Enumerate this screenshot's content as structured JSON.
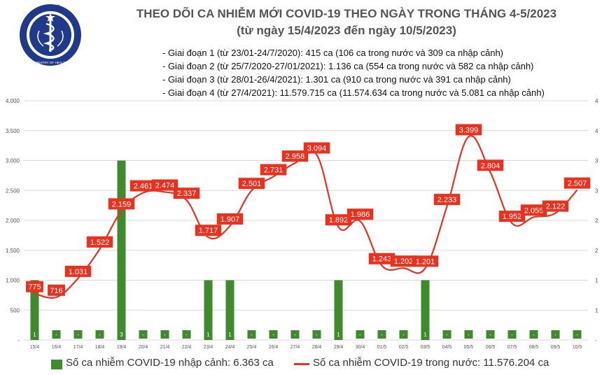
{
  "header": {
    "logo_text_top": "BỘ Y TẾ",
    "logo_text_bottom": "MINISTRY OF HEALTH",
    "title_line1": "THEO DÕI CA NHIỄM MỚI COVID-19 THEO NGÀY TRONG THÁNG 4-5/2023",
    "title_line2": "(từ ngày 15/4/2023 đến ngày 10/5/2023)"
  },
  "stages": [
    "- Giai đoạn 1 (từ 23/01-24/7/2020): 415 ca (106 ca trong nước và 309 ca nhập cảnh)",
    "- Giai đoạn 2 (từ 25/7/2020-27/01/2021): 1.136 ca (554 ca trong nước và 582 ca nhập cảnh)",
    "- Giai đoạn 3 (từ 28/01-26/4/2021): 1.301 ca (910 ca trong nước và 391 ca nhập cảnh)",
    "- Giai đoạn 4 (từ 27/4/2021): 11.579.715 ca (11.574.634 ca trong nước và 5.081 ca nhập cảnh)"
  ],
  "legend": {
    "bar_label": "Số ca nhiễm COVID-19 nhập cảnh: 6.363 ca",
    "line_label": "Số ca nhiễm COVID-19 trong nước: 11.576.204 ca"
  },
  "colors": {
    "bar": "#3e8a2c",
    "line": "#e8321f",
    "label_box": "#e8321f",
    "grid": "#d9d9d9",
    "axis_text": "#555555"
  },
  "chart_data": {
    "type": "bar+line",
    "categories": [
      "15/4",
      "16/4",
      "17/4",
      "18/4",
      "19/4",
      "20/4",
      "21/4",
      "22/4",
      "23/4",
      "24/4",
      "25/4",
      "26/4",
      "27/4",
      "28/4",
      "29/4",
      "30/4",
      "01/5",
      "02/5",
      "03/5",
      "04/5",
      "05/5",
      "06/5",
      "07/5",
      "08/5",
      "09/5",
      "10/5"
    ],
    "left_axis": {
      "min": 0,
      "max": 4000,
      "ticks": [
        "-",
        "500",
        "1.000",
        "1.500",
        "2.000",
        "2.500",
        "3.000",
        "3.500",
        "4.000"
      ]
    },
    "right_axis": {
      "min": 0,
      "max": 4,
      "ticks": [
        "-",
        "1",
        "1",
        "2",
        "2",
        "3",
        "3",
        "4",
        "4"
      ]
    },
    "series": [
      {
        "kind": "bar",
        "axis": "right",
        "values": [
          1,
          0,
          0,
          0,
          3,
          0,
          0,
          0,
          1,
          1,
          0,
          0,
          0,
          0,
          1,
          0,
          0,
          0,
          1,
          0,
          0,
          0,
          0,
          0,
          0,
          0
        ],
        "labels": [
          "1",
          "-",
          "-",
          "-",
          "3",
          "-",
          "-",
          "-",
          "1",
          "1",
          "-",
          "-",
          "-",
          "-",
          "1",
          "-",
          "-",
          "-",
          "1",
          "-",
          "-",
          "-",
          "-",
          "-",
          "-",
          "-"
        ]
      },
      {
        "kind": "line",
        "axis": "left",
        "values": [
          775,
          716,
          1031,
          1522,
          2159,
          2461,
          2474,
          2337,
          1717,
          1907,
          2501,
          2731,
          2958,
          3094,
          1892,
          1986,
          1243,
          1202,
          1201,
          2233,
          3399,
          2804,
          1952,
          2055,
          2122,
          2507
        ],
        "labels": [
          "775",
          "716",
          "1.031",
          "1.522",
          "2.159",
          "2.461",
          "2.474",
          "2.337",
          "1.717",
          "1.907",
          "2.501",
          "2.731",
          "2.958",
          "3.094",
          "1.892",
          "1.986",
          "1.243",
          "1.202",
          "1.201",
          "2.233",
          "3.399",
          "2.804",
          "1.952",
          "2.055",
          "2.122",
          "2.507"
        ]
      }
    ]
  }
}
